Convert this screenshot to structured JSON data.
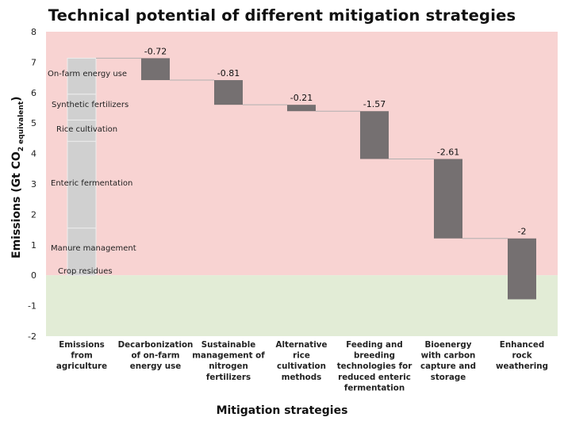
{
  "chart_data": {
    "type": "bar",
    "subtype": "waterfall",
    "title": "Technical potential of different mitigation strategies",
    "xlabel": "Mitigation strategies",
    "ylabel_main": "Emissions (Gt CO",
    "ylabel_sub": "2 equivalent",
    "ylabel_close": ")",
    "ylim": [
      -2,
      8
    ],
    "yticks": [
      "8",
      "7",
      "6",
      "5",
      "4",
      "3",
      "2",
      "1",
      "0",
      "-1",
      "-2"
    ],
    "grid": false,
    "background_bands": [
      {
        "from": 0,
        "to": 8,
        "color": "#f8d3d2"
      },
      {
        "from": -2,
        "to": 0,
        "color": "#e2ecd6"
      }
    ],
    "categories": [
      [
        "Emissions",
        "from",
        "agriculture"
      ],
      [
        "Decarbonization",
        "of on-farm",
        "energy use"
      ],
      [
        "Sustainable",
        "management of",
        "nitrogen",
        "fertilizers"
      ],
      [
        "Alternative",
        "rice",
        "cultivation",
        "methods"
      ],
      [
        "Feeding and",
        "breeding",
        "technologies for",
        "reduced enteric",
        "fermentation"
      ],
      [
        "Bioenergy",
        "with carbon",
        "capture and",
        "storage"
      ],
      [
        "Enhanced",
        "rock",
        "weathering"
      ]
    ],
    "total_bar": {
      "segments": [
        {
          "label": "Crop residues",
          "from": 0.0,
          "to": 0.15
        },
        {
          "label": "Manure management",
          "from": 0.15,
          "to": 1.55
        },
        {
          "label": "Enteric fermentation",
          "from": 1.55,
          "to": 4.4
        },
        {
          "label": "Rice cultivation",
          "from": 4.4,
          "to": 5.1
        },
        {
          "label": "Synthetic fertilizers",
          "from": 5.1,
          "to": 5.95
        },
        {
          "label": "On-farm energy use",
          "from": 5.95,
          "to": 7.13
        }
      ],
      "total": 7.13,
      "color": "#d0d0d0"
    },
    "steps": [
      {
        "value": -0.72,
        "label": "-0.72"
      },
      {
        "value": -0.81,
        "label": "-0.81"
      },
      {
        "value": -0.21,
        "label": "-0.21"
      },
      {
        "value": -1.57,
        "label": "-1.57"
      },
      {
        "value": -2.61,
        "label": "-2.61"
      },
      {
        "value": -2,
        "label": "-2"
      }
    ],
    "step_color": "#757071",
    "connector_color": "#b0b0b0"
  }
}
